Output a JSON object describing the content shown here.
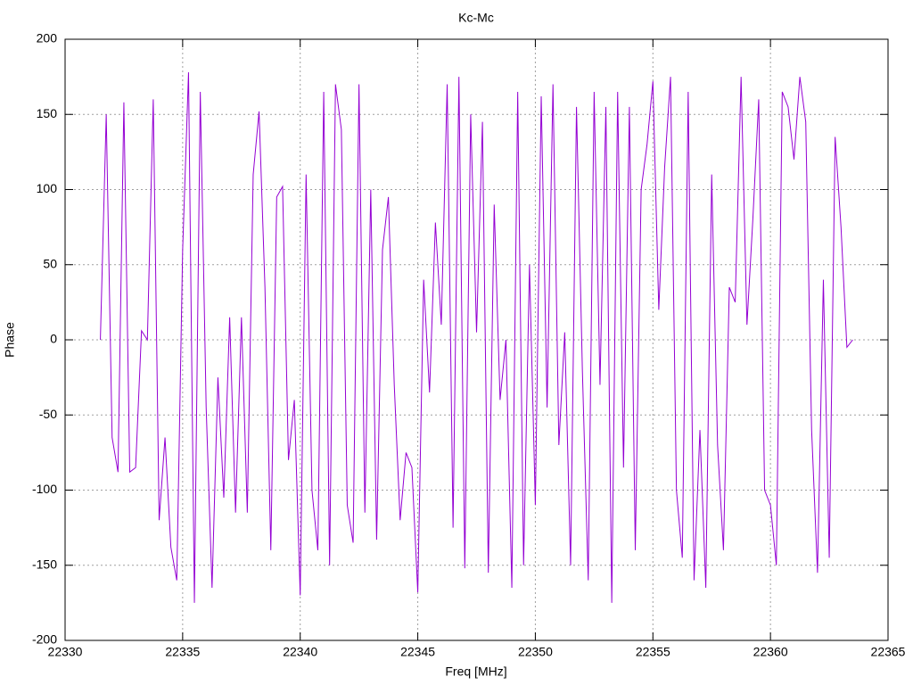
{
  "chart_data": {
    "type": "line",
    "title": "Kc-Mc",
    "x_label": "Freq [MHz]",
    "y_label": "Phase",
    "x": [
      22331.5,
      22331.75,
      22332,
      22332.25,
      22332.5,
      22332.75,
      22333,
      22333.25,
      22333.5,
      22333.75,
      22334,
      22334.25,
      22334.5,
      22334.75,
      22335,
      22335.25,
      22335.5,
      22335.75,
      22336,
      22336.25,
      22336.5,
      22336.75,
      22337,
      22337.25,
      22337.5,
      22337.75,
      22338,
      22338.25,
      22338.5,
      22338.75,
      22339,
      22339.25,
      22339.5,
      22339.75,
      22340,
      22340.25,
      22340.5,
      22340.75,
      22341,
      22341.25,
      22341.5,
      22341.75,
      22342,
      22342.25,
      22342.5,
      22342.75,
      22343,
      22343.25,
      22343.5,
      22343.75,
      22344,
      22344.25,
      22344.5,
      22344.75,
      22345,
      22345.25,
      22345.5,
      22345.75,
      22346,
      22346.25,
      22346.5,
      22346.75,
      22347,
      22347.25,
      22347.5,
      22347.75,
      22348,
      22348.25,
      22348.5,
      22348.75,
      22349,
      22349.25,
      22349.5,
      22349.75,
      22350,
      22350.25,
      22350.5,
      22350.75,
      22351,
      22351.25,
      22351.5,
      22351.75,
      22352,
      22352.25,
      22352.5,
      22352.75,
      22353,
      22353.25,
      22353.5,
      22353.75,
      22354,
      22354.25,
      22354.5,
      22354.75,
      22355,
      22355.25,
      22355.5,
      22355.75,
      22356,
      22356.25,
      22356.5,
      22356.75,
      22357,
      22357.25,
      22357.5,
      22357.75,
      22358,
      22358.25,
      22358.5,
      22358.75,
      22359,
      22359.25,
      22359.5,
      22359.75,
      22360,
      22360.25,
      22360.5,
      22360.75,
      22361,
      22361.25,
      22361.5,
      22361.75,
      22362,
      22362.25,
      22362.5,
      22362.75,
      22363,
      22363.25,
      22363.5
    ],
    "values": [
      0,
      150,
      -65,
      -88,
      158,
      -88,
      -85,
      6,
      0,
      160,
      -120,
      -65,
      -138,
      -160,
      60,
      178,
      -175,
      165,
      -45,
      -165,
      -25,
      -105,
      15,
      -115,
      15,
      -115,
      110,
      152,
      35,
      -140,
      95,
      102,
      -80,
      -40,
      -170,
      110,
      -100,
      -140,
      165,
      -150,
      170,
      140,
      -110,
      -135,
      170,
      -115,
      100,
      -133,
      60,
      95,
      -30,
      -120,
      -75,
      -85,
      -168,
      40,
      -35,
      78,
      10,
      170,
      -125,
      175,
      -152,
      150,
      5,
      145,
      -155,
      90,
      -40,
      0,
      -165,
      165,
      -150,
      50,
      -110,
      162,
      -45,
      170,
      -70,
      5,
      -150,
      155,
      -20,
      -160,
      165,
      -30,
      155,
      -175,
      165,
      -85,
      155,
      -140,
      100,
      130,
      172,
      20,
      115,
      175,
      -100,
      -145,
      165,
      -160,
      -60,
      -165,
      110,
      -70,
      -140,
      35,
      25,
      175,
      10,
      80,
      160,
      -100,
      -110,
      -150,
      165,
      155,
      120,
      175,
      145,
      -60,
      -155,
      40,
      -145,
      135,
      75,
      -5,
      0
    ],
    "color": "#9400d3",
    "xlim": [
      22330,
      22365
    ],
    "xticks": [
      22330,
      22335,
      22340,
      22345,
      22350,
      22355,
      22360,
      22365
    ],
    "ylim": [
      -200,
      200
    ],
    "yticks": [
      -200,
      -150,
      -100,
      -50,
      0,
      50,
      100,
      150,
      200
    ],
    "grid": true
  }
}
